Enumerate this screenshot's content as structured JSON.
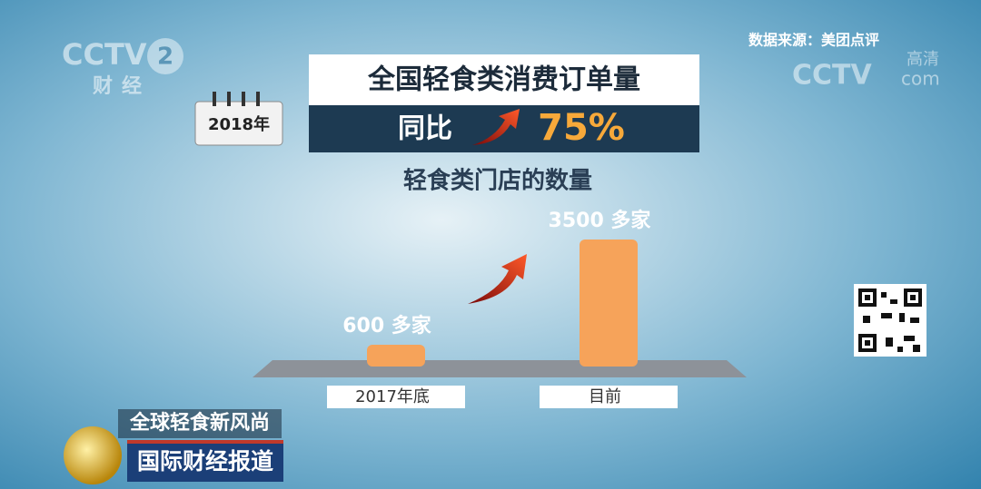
{
  "logo": {
    "brand": "CCTV",
    "channel": "2",
    "name": "财经"
  },
  "watermark": {
    "brand": "CCTV",
    "quality": "高清",
    "suffix": "com"
  },
  "source": "数据来源：美团点评",
  "date": "2018年",
  "headline": {
    "title": "全国轻食类消费订单量",
    "change_label": "同比",
    "change": "75%"
  },
  "ticker": {
    "topic": "全球轻食新风尚",
    "program": "国际财经报道"
  },
  "chart_data": {
    "type": "bar",
    "title": "轻食类门店的数量",
    "categories": [
      "2017年底",
      "目前"
    ],
    "values": [
      600,
      3500
    ],
    "value_labels": [
      "600 多家",
      "3500 多家"
    ],
    "color": "#f6a35a"
  }
}
